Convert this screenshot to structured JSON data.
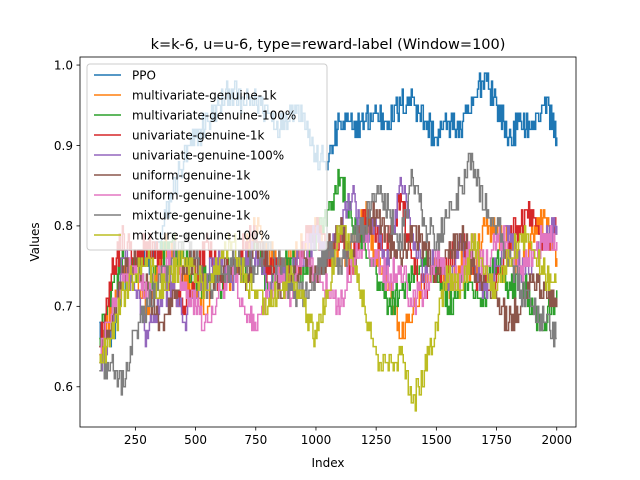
{
  "chart_data": {
    "type": "line",
    "title": "k=k-6, u=u-6, type=reward-label (Window=100)",
    "xlabel": "Index",
    "ylabel": "Values",
    "xlim": [
      20,
      2080
    ],
    "ylim": [
      0.55,
      1.01
    ],
    "xticks": [
      250,
      500,
      750,
      1000,
      1250,
      1500,
      1750,
      2000
    ],
    "xtick_labels": [
      "250",
      "500",
      "750",
      "1000",
      "1250",
      "1500",
      "1750",
      "2000"
    ],
    "yticks": [
      0.6,
      0.7,
      0.8,
      0.9,
      1.0
    ],
    "ytick_labels": [
      "0.6",
      "0.7",
      "0.8",
      "0.9",
      "1.0"
    ],
    "grid": false,
    "legend_position": "top-left",
    "x": [
      100,
      150,
      200,
      250,
      300,
      350,
      400,
      450,
      500,
      550,
      600,
      650,
      700,
      750,
      800,
      850,
      900,
      950,
      1000,
      1050,
      1100,
      1150,
      1200,
      1250,
      1300,
      1350,
      1400,
      1450,
      1500,
      1550,
      1600,
      1650,
      1700,
      1750,
      1800,
      1850,
      1900,
      1950,
      2000
    ],
    "series": [
      {
        "name": "PPO",
        "color": "#1f77b4",
        "values": [
          0.68,
          0.66,
          0.72,
          0.76,
          0.75,
          0.78,
          0.84,
          0.88,
          0.91,
          0.93,
          0.95,
          0.97,
          0.95,
          0.96,
          0.94,
          0.92,
          0.95,
          0.94,
          0.88,
          0.88,
          0.93,
          0.92,
          0.93,
          0.94,
          0.93,
          0.95,
          0.96,
          0.93,
          0.91,
          0.93,
          0.92,
          0.95,
          0.99,
          0.95,
          0.91,
          0.93,
          0.92,
          0.96,
          0.91
        ]
      },
      {
        "name": "multivariate-genuine-1k",
        "color": "#ff7f0e",
        "values": [
          0.64,
          0.7,
          0.73,
          0.74,
          0.7,
          0.76,
          0.78,
          0.74,
          0.72,
          0.7,
          0.75,
          0.73,
          0.76,
          0.8,
          0.77,
          0.74,
          0.76,
          0.78,
          0.8,
          0.77,
          0.75,
          0.78,
          0.82,
          0.76,
          0.73,
          0.66,
          0.69,
          0.73,
          0.76,
          0.72,
          0.75,
          0.74,
          0.8,
          0.79,
          0.78,
          0.74,
          0.79,
          0.81,
          0.76
        ]
      },
      {
        "name": "multivariate-genuine-100%",
        "color": "#2ca02c",
        "values": [
          0.66,
          0.72,
          0.76,
          0.74,
          0.72,
          0.76,
          0.78,
          0.76,
          0.72,
          0.74,
          0.72,
          0.76,
          0.74,
          0.78,
          0.72,
          0.74,
          0.76,
          0.74,
          0.79,
          0.82,
          0.86,
          0.8,
          0.78,
          0.74,
          0.7,
          0.72,
          0.74,
          0.76,
          0.74,
          0.7,
          0.73,
          0.72,
          0.71,
          0.76,
          0.72,
          0.74,
          0.69,
          0.68,
          0.72
        ]
      },
      {
        "name": "univariate-genuine-1k",
        "color": "#d62728",
        "values": [
          0.65,
          0.74,
          0.79,
          0.75,
          0.78,
          0.76,
          0.72,
          0.7,
          0.74,
          0.78,
          0.73,
          0.75,
          0.77,
          0.79,
          0.74,
          0.76,
          0.72,
          0.78,
          0.8,
          0.76,
          0.78,
          0.75,
          0.82,
          0.79,
          0.77,
          0.84,
          0.76,
          0.72,
          0.74,
          0.76,
          0.78,
          0.75,
          0.72,
          0.74,
          0.78,
          0.8,
          0.82,
          0.78,
          0.8
        ]
      },
      {
        "name": "univariate-genuine-100%",
        "color": "#9467bd",
        "values": [
          0.63,
          0.67,
          0.76,
          0.72,
          0.66,
          0.7,
          0.73,
          0.68,
          0.71,
          0.74,
          0.76,
          0.73,
          0.75,
          0.77,
          0.72,
          0.74,
          0.75,
          0.76,
          0.79,
          0.76,
          0.8,
          0.84,
          0.78,
          0.8,
          0.75,
          0.86,
          0.79,
          0.74,
          0.76,
          0.72,
          0.78,
          0.75,
          0.72,
          0.75,
          0.8,
          0.74,
          0.76,
          0.78,
          0.8
        ]
      },
      {
        "name": "uniform-genuine-1k",
        "color": "#8c564b",
        "values": [
          0.65,
          0.68,
          0.74,
          0.76,
          0.72,
          0.68,
          0.7,
          0.74,
          0.76,
          0.72,
          0.74,
          0.75,
          0.73,
          0.78,
          0.75,
          0.72,
          0.74,
          0.76,
          0.73,
          0.77,
          0.8,
          0.76,
          0.79,
          0.82,
          0.78,
          0.76,
          0.8,
          0.77,
          0.74,
          0.76,
          0.79,
          0.75,
          0.73,
          0.71,
          0.68,
          0.7,
          0.74,
          0.72,
          0.71
        ]
      },
      {
        "name": "uniform-genuine-100%",
        "color": "#e377c2",
        "values": [
          0.64,
          0.69,
          0.73,
          0.75,
          0.71,
          0.74,
          0.76,
          0.73,
          0.7,
          0.68,
          0.72,
          0.75,
          0.7,
          0.67,
          0.72,
          0.74,
          0.71,
          0.78,
          0.74,
          0.72,
          0.7,
          0.75,
          0.78,
          0.76,
          0.73,
          0.75,
          0.7,
          0.72,
          0.77,
          0.73,
          0.74,
          0.78,
          0.75,
          0.79,
          0.77,
          0.74,
          0.76,
          0.79,
          0.78
        ]
      },
      {
        "name": "mixture-genuine-1k",
        "color": "#7f7f7f",
        "values": [
          0.62,
          0.63,
          0.6,
          0.67,
          0.7,
          0.74,
          0.76,
          0.78,
          0.76,
          0.72,
          0.74,
          0.75,
          0.76,
          0.74,
          0.77,
          0.75,
          0.72,
          0.71,
          0.74,
          0.77,
          0.75,
          0.78,
          0.8,
          0.84,
          0.82,
          0.78,
          0.86,
          0.8,
          0.78,
          0.81,
          0.85,
          0.88,
          0.82,
          0.8,
          0.76,
          0.72,
          0.7,
          0.68,
          0.66
        ]
      },
      {
        "name": "mixture-genuine-100%",
        "color": "#bcbd22",
        "values": [
          0.63,
          0.66,
          0.72,
          0.74,
          0.76,
          0.72,
          0.74,
          0.76,
          0.74,
          0.72,
          0.76,
          0.78,
          0.74,
          0.72,
          0.7,
          0.72,
          0.74,
          0.7,
          0.66,
          0.72,
          0.8,
          0.76,
          0.7,
          0.64,
          0.62,
          0.64,
          0.58,
          0.62,
          0.68,
          0.74,
          0.72,
          0.78,
          0.74,
          0.72,
          0.76,
          0.79,
          0.77,
          0.74,
          0.73
        ]
      }
    ]
  }
}
